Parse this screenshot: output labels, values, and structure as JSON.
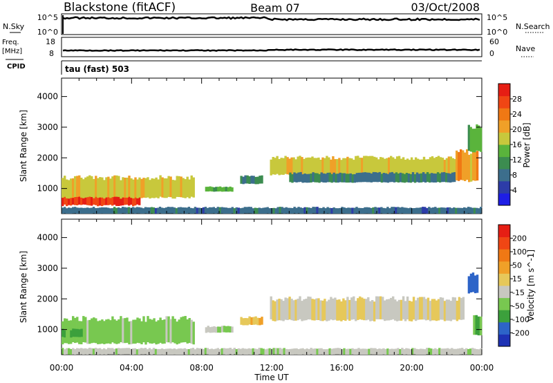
{
  "header": {
    "station": "Blackstone (fitACF)",
    "beam": "Beam 07",
    "date": "03/Oct/2008"
  },
  "strips": {
    "nsky": {
      "left_label": "N.Sky",
      "right_label": "N.Search",
      "left_ticks": [
        "10^5",
        "10^0"
      ],
      "right_ticks": [
        "10^5",
        "10^0"
      ]
    },
    "freq": {
      "left_label_1": "Freq.",
      "left_label_2": "[MHz]",
      "right_label": "Nave",
      "left_ticks": [
        "18",
        "8"
      ],
      "right_ticks": [
        "60",
        "0"
      ]
    },
    "cpid": {
      "left_label": "CPID",
      "program_text": "tau (fast) 503"
    }
  },
  "colors": {
    "power_scale": [
      "#1e1ee6",
      "#2d3ca8",
      "#3c6e8c",
      "#3c8c50",
      "#5ab43c",
      "#c8c83c",
      "#f0a028",
      "#f07814",
      "#f04614",
      "#e61e14"
    ],
    "velocity_scale": [
      "#1e32b4",
      "#2d64c8",
      "#3ca03c",
      "#78c850",
      "#c8c8c0",
      "#e6c85a",
      "#f0a028",
      "#f07814",
      "#f04614",
      "#e61e14"
    ]
  },
  "chart_data": [
    {
      "type": "heatmap",
      "name": "power",
      "xlabel": "Time UT",
      "ylabel": "Slant Range [km]",
      "x_ticks": [
        "00:00",
        "04:00",
        "08:00",
        "12:00",
        "16:00",
        "20:00",
        "00:00"
      ],
      "xlim_hours": [
        0,
        24
      ],
      "y_ticks": [
        1000,
        2000,
        3000,
        4000
      ],
      "ylim": [
        180,
        4600
      ],
      "colorbar": {
        "label": "Power [dB]",
        "ticks": [
          4,
          8,
          12,
          16,
          20,
          24,
          28
        ],
        "range": [
          0,
          32
        ]
      },
      "regions": [
        {
          "t": [
            0.0,
            4.5
          ],
          "r": [
            450,
            1050
          ],
          "value": 29
        },
        {
          "t": [
            0.0,
            7.6
          ],
          "r": [
            700,
            1350
          ],
          "value": 18
        },
        {
          "t": [
            8.2,
            9.8
          ],
          "r": [
            900,
            1050
          ],
          "value": 14
        },
        {
          "t": [
            10.2,
            11.5
          ],
          "r": [
            1150,
            1400
          ],
          "value": 10
        },
        {
          "t": [
            11.9,
            23.0
          ],
          "r": [
            1450,
            2000
          ],
          "value": 18
        },
        {
          "t": [
            13.0,
            22.5
          ],
          "r": [
            1200,
            1500
          ],
          "value": 9
        },
        {
          "t": [
            22.5,
            23.8
          ],
          "r": [
            1250,
            2200
          ],
          "value": 21
        },
        {
          "t": [
            23.2,
            24.0
          ],
          "r": [
            2200,
            3000
          ],
          "value": 14
        },
        {
          "t": [
            0.0,
            24.0
          ],
          "r": [
            180,
            380
          ],
          "value": 8
        }
      ]
    },
    {
      "type": "heatmap",
      "name": "velocity",
      "xlabel": "Time UT",
      "ylabel": "Slant Range [km]",
      "x_ticks": [
        "00:00",
        "04:00",
        "08:00",
        "12:00",
        "16:00",
        "20:00",
        "00:00"
      ],
      "xlim_hours": [
        0,
        24
      ],
      "y_ticks": [
        1000,
        2000,
        3000,
        4000
      ],
      "ylim": [
        180,
        4600
      ],
      "colorbar": {
        "label": "Velocity [m s^-1]",
        "ticks": [
          "200",
          "100",
          "50",
          "15",
          "-15",
          "-50",
          "-100",
          "-200"
        ],
        "range": [
          -250,
          250
        ]
      },
      "regions": [
        {
          "t": [
            0.0,
            7.6
          ],
          "r": [
            550,
            1350
          ],
          "value": -70
        },
        {
          "t": [
            0.0,
            1.2
          ],
          "r": [
            750,
            1000
          ],
          "value": -120
        },
        {
          "t": [
            8.2,
            9.8
          ],
          "r": [
            900,
            1100
          ],
          "value": -40
        },
        {
          "t": [
            10.2,
            11.5
          ],
          "r": [
            1150,
            1400
          ],
          "value": 40
        },
        {
          "t": [
            11.9,
            23.0
          ],
          "r": [
            1300,
            2000
          ],
          "value": 0
        },
        {
          "t": [
            23.2,
            23.8
          ],
          "r": [
            2200,
            2800
          ],
          "value": -200
        },
        {
          "t": [
            23.5,
            24.0
          ],
          "r": [
            800,
            1400
          ],
          "value": -110
        },
        {
          "t": [
            0.0,
            24.0
          ],
          "r": [
            180,
            380
          ],
          "value": -30
        }
      ]
    }
  ]
}
